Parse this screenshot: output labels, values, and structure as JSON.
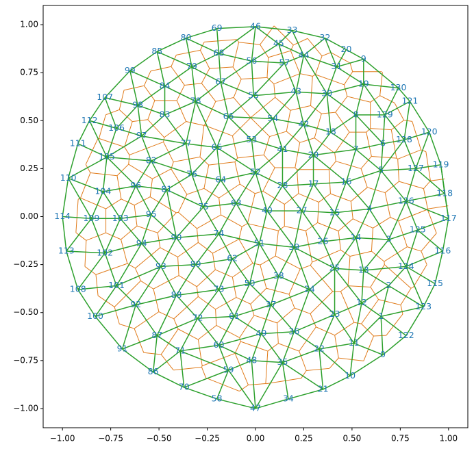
{
  "chart_data": {
    "type": "mesh",
    "labels": [
      0,
      1,
      2,
      3,
      4,
      5,
      6,
      7,
      8,
      9,
      10,
      11,
      12,
      13,
      14,
      15,
      16,
      17,
      18,
      19,
      20,
      21,
      22,
      23,
      24,
      25,
      26,
      27,
      28,
      29,
      30,
      31,
      32,
      33,
      34,
      35,
      36,
      37,
      38,
      39,
      40,
      41,
      42,
      43,
      44,
      45,
      46,
      47,
      48,
      49,
      50,
      51,
      52,
      53,
      54,
      55,
      56,
      57,
      58,
      59,
      60,
      61,
      62,
      63,
      64,
      65,
      66,
      67,
      68,
      69,
      70,
      71,
      72,
      73,
      74,
      75,
      76,
      77,
      78,
      79,
      80,
      81,
      82,
      83,
      84,
      85,
      86,
      87,
      88,
      89,
      90,
      91,
      92,
      93,
      94,
      95,
      96,
      97,
      98,
      99,
      100,
      101,
      102,
      103,
      104,
      105,
      106,
      107,
      108,
      109,
      110,
      111,
      112,
      113,
      114,
      115,
      116,
      117,
      118,
      119,
      120,
      121,
      122,
      123,
      124,
      125,
      126,
      127,
      128,
      129,
      130
    ],
    "x": [
      0.66,
      0.65,
      0.69,
      0.69,
      0.59,
      0.65,
      0.66,
      0.52,
      0.52,
      0.56,
      0.49,
      0.51,
      0.55,
      0.56,
      0.52,
      0.41,
      0.47,
      0.3,
      0.39,
      0.56,
      0.47,
      0.35,
      0.33,
      0.41,
      0.28,
      0.41,
      0.35,
      0.24,
      0.14,
      0.3,
      0.37,
      0.42,
      0.36,
      0.19,
      0.17,
      0.14,
      0.2,
      0.08,
      0.12,
      0.2,
      0.06,
      0.14,
      0.25,
      0.21,
      0.25,
      0.12,
      0,
      0,
      -0.02,
      0.03,
      -0.03,
      0.02,
      0,
      -0.02,
      0.09,
      -0.01,
      -0.02,
      0.15,
      -0.2,
      -0.14,
      -0.19,
      -0.11,
      -0.12,
      -0.1,
      -0.18,
      -0.2,
      -0.14,
      -0.18,
      -0.19,
      -0.2,
      -0.37,
      -0.39,
      -0.3,
      -0.19,
      -0.19,
      -0.27,
      -0.33,
      -0.36,
      -0.31,
      -0.33,
      -0.36,
      -0.46,
      -0.54,
      -0.47,
      -0.47,
      -0.51,
      -0.53,
      -0.51,
      -0.41,
      -0.31,
      -0.41,
      -0.69,
      -0.62,
      -0.49,
      -0.59,
      -0.54,
      -0.62,
      -0.59,
      -0.61,
      -0.65,
      -0.83,
      -0.72,
      -0.78,
      -0.7,
      -0.79,
      -0.77,
      -0.72,
      -0.78,
      -0.92,
      -0.85,
      -0.97,
      -0.92,
      -0.86,
      -0.98,
      -1,
      0.93,
      0.97,
      1,
      0.98,
      0.96,
      0.9,
      0.8,
      0.78,
      0.87,
      0.78,
      0.84,
      0.78,
      0.83,
      0.77,
      0.67,
      0.74
    ],
    "y": [
      -0.72,
      -0.52,
      -0.36,
      -0.12,
      0.04,
      0.24,
      0.38,
      0.35,
      0.53,
      0.82,
      -0.83,
      -0.66,
      -0.45,
      -0.28,
      -0.11,
      0.02,
      0.18,
      0.17,
      0.44,
      0.69,
      0.87,
      -0.9,
      -0.69,
      -0.51,
      -0.38,
      -0.27,
      -0.13,
      0.03,
      0.16,
      0.32,
      0.64,
      0.78,
      0.93,
      0.97,
      -0.95,
      -0.76,
      -0.6,
      -0.46,
      -0.31,
      -0.16,
      0.03,
      0.35,
      0.48,
      0.65,
      0.84,
      0.9,
      0.99,
      -1,
      -0.75,
      -0.61,
      -0.35,
      -0.14,
      0.23,
      0.4,
      0.51,
      0.63,
      0.81,
      0.8,
      -0.95,
      -0.8,
      -0.67,
      -0.52,
      -0.22,
      0.07,
      0.19,
      0.36,
      0.52,
      0.7,
      0.85,
      0.98,
      -0.89,
      -0.7,
      -0.53,
      -0.38,
      -0.09,
      0.05,
      0.22,
      0.38,
      0.6,
      0.78,
      0.93,
      0.14,
      0.29,
      0.53,
      0.68,
      0.86,
      -0.81,
      -0.62,
      -0.41,
      -0.25,
      -0.11,
      -0.69,
      -0.46,
      -0.26,
      -0.14,
      0.01,
      0.16,
      0.42,
      0.58,
      0.76,
      -0.52,
      -0.36,
      -0.19,
      -0.01,
      0.13,
      0.31,
      0.46,
      0.62,
      -0.38,
      -0.01,
      0.2,
      0.38,
      0.5,
      -0.18,
      0,
      -0.35,
      -0.18,
      -0.01,
      0.12,
      0.27,
      0.44,
      0.6,
      -0.62,
      -0.47,
      -0.26,
      -0.07,
      0.08,
      0.25,
      0.4,
      0.53,
      0.67
    ],
    "mesh_color": "#2ca02c",
    "dual_color": "#e07b1a",
    "label_color": "#1f77b4",
    "xlim": [
      -1.1,
      1.1
    ],
    "ylim": [
      -1.1,
      1.1
    ],
    "xticks": [
      {
        "value": -1,
        "label": "−1.00"
      },
      {
        "value": -0.75,
        "label": "−0.75"
      },
      {
        "value": -0.5,
        "label": "−0.50"
      },
      {
        "value": -0.25,
        "label": "−0.25"
      },
      {
        "value": 0,
        "label": "0.00"
      },
      {
        "value": 0.25,
        "label": "0.25"
      },
      {
        "value": 0.5,
        "label": "0.50"
      },
      {
        "value": 0.75,
        "label": "0.75"
      },
      {
        "value": 1,
        "label": "1.00"
      }
    ],
    "yticks": [
      {
        "value": -1,
        "label": "−1.00"
      },
      {
        "value": -0.75,
        "label": "−0.75"
      },
      {
        "value": -0.5,
        "label": "−0.50"
      },
      {
        "value": -0.25,
        "label": "−0.25"
      },
      {
        "value": 0,
        "label": "0.00"
      },
      {
        "value": 0.25,
        "label": "0.25"
      },
      {
        "value": 0.5,
        "label": "0.50"
      },
      {
        "value": 0.75,
        "label": "0.75"
      },
      {
        "value": 1,
        "label": "1.00"
      }
    ]
  }
}
